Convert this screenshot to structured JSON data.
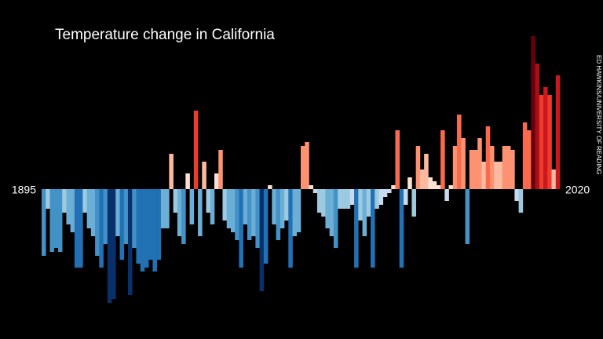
{
  "chart_data": {
    "type": "bar",
    "title": "Temperature change in California",
    "annotation": "ED HAWKINS/UNIVERSITY OF READING",
    "categories": [
      "1895",
      null,
      null,
      null,
      null,
      null,
      null,
      null,
      null,
      null,
      null,
      null,
      null,
      null,
      null,
      null,
      null,
      null,
      null,
      null,
      null,
      null,
      null,
      null,
      null,
      null,
      null,
      null,
      null,
      null,
      null,
      null,
      null,
      null,
      null,
      null,
      null,
      null,
      null,
      null,
      null,
      null,
      null,
      null,
      null,
      null,
      null,
      null,
      null,
      null,
      null,
      null,
      null,
      null,
      null,
      null,
      null,
      null,
      null,
      null,
      null,
      null,
      null,
      null,
      null,
      null,
      null,
      null,
      null,
      null,
      null,
      null,
      null,
      null,
      null,
      null,
      null,
      null,
      null,
      null,
      null,
      null,
      null,
      null,
      null,
      null,
      null,
      null,
      null,
      null,
      null,
      null,
      null,
      null,
      null,
      null,
      null,
      null,
      null,
      null,
      null,
      null,
      null,
      null,
      null,
      null,
      null,
      null,
      null,
      null,
      null,
      null,
      null,
      null,
      null,
      null,
      null,
      null,
      null,
      null,
      null,
      null,
      null,
      null,
      null,
      "2020"
    ],
    "values": [
      -1.7,
      -0.5,
      -1.6,
      -1.5,
      -1.6,
      -0.6,
      -0.9,
      -1.1,
      -2.0,
      -2.0,
      -0.6,
      -1.0,
      -1.2,
      -1.7,
      -2.0,
      -1.4,
      -2.9,
      -2.8,
      -1.2,
      -1.8,
      -1.4,
      -2.7,
      -1.5,
      -1.9,
      -2.1,
      -2.0,
      -1.8,
      -2.1,
      -1.8,
      -1.0,
      -1.0,
      0.9,
      -0.6,
      -1.2,
      -1.4,
      0.4,
      -0.9,
      2.0,
      -1.2,
      0.7,
      -0.6,
      -0.9,
      0.4,
      1.0,
      -0.8,
      -1.0,
      -1.1,
      -1.3,
      -2.0,
      -0.9,
      -1.3,
      -1.2,
      -1.5,
      -2.6,
      -1.9,
      0.1,
      -0.9,
      -1.3,
      -1.0,
      -0.8,
      -2.0,
      -1.2,
      -1.1,
      1.1,
      1.2,
      0.1,
      -0.1,
      -0.6,
      -0.7,
      -1.0,
      -1.2,
      -1.5,
      -0.5,
      -0.5,
      -0.5,
      -0.4,
      -2.0,
      -0.8,
      -1.2,
      -0.7,
      -2.0,
      -0.5,
      -0.4,
      -0.2,
      -0.1,
      0.1,
      1.5,
      -2.0,
      -0.4,
      0.3,
      -0.7,
      1.1,
      0.5,
      0.9,
      0.3,
      0.2,
      0.1,
      1.5,
      -0.3,
      0.1,
      1.1,
      1.9,
      1.3,
      -1.4,
      1.0,
      1.0,
      1.3,
      0.7,
      1.6,
      1.1,
      0.7,
      0.7,
      1.1,
      1.1,
      1.0,
      -0.3,
      -0.6,
      1.7,
      1.5,
      3.9,
      3.2,
      2.4,
      2.6,
      2.4,
      0.5,
      2.9
    ],
    "ylim": [
      -3,
      4
    ],
    "colorscale": {
      "negative": [
        "#c6dbef",
        "#9ecae1",
        "#6baed6",
        "#4292c6",
        "#2171b5",
        "#08519c",
        "#08306b"
      ],
      "positive": [
        "#fee0d2",
        "#fcbba1",
        "#fc9272",
        "#fb6a4a",
        "#ef3b2c",
        "#cb181d",
        "#a50f15",
        "#67000d"
      ]
    }
  }
}
